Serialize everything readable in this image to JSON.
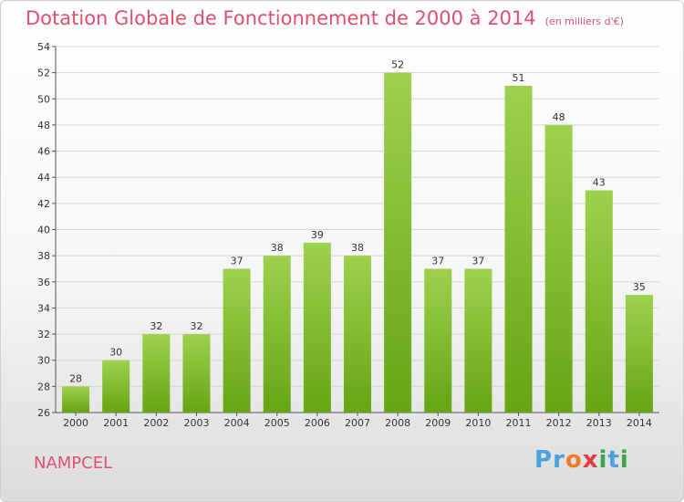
{
  "title": "Dotation Globale de Fonctionnement de 2000 à 2014",
  "unit_note": "(en milliers d'€)",
  "commune": "NAMPCEL",
  "logo": {
    "letters": [
      "P",
      "r",
      "o",
      "x",
      "i",
      "t",
      "i"
    ],
    "colors": [
      "#4aa3df",
      "#4aa3df",
      "#f07c2a",
      "#e03c3c",
      "#3ba648",
      "#4aa3df",
      "#3ba648"
    ]
  },
  "colors": {
    "title": "#e0506e",
    "bar_light": "#9ed14e",
    "bar_dark": "#66a514",
    "grid": "#d6d6d6"
  },
  "chart_data": {
    "type": "bar",
    "title": "Dotation Globale de Fonctionnement de 2000 à 2014",
    "xlabel": "",
    "ylabel": "",
    "ylim": [
      26,
      54
    ],
    "yticks": [
      26,
      28,
      30,
      32,
      34,
      36,
      38,
      40,
      42,
      44,
      46,
      48,
      50,
      52,
      54
    ],
    "grid": true,
    "categories": [
      "2000",
      "2001",
      "2002",
      "2003",
      "2004",
      "2005",
      "2006",
      "2007",
      "2008",
      "2009",
      "2010",
      "2011",
      "2012",
      "2013",
      "2014"
    ],
    "values": [
      28,
      30,
      32,
      32,
      37,
      38,
      39,
      38,
      52,
      37,
      37,
      51,
      48,
      43,
      35
    ]
  }
}
